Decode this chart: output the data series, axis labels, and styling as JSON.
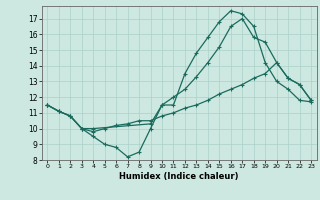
{
  "xlabel": "Humidex (Indice chaleur)",
  "bg_color": "#cde8e0",
  "line_color": "#1a6b5e",
  "grid_color": "#aad0c8",
  "xlim": [
    -0.5,
    23.5
  ],
  "ylim": [
    8,
    17.8
  ],
  "xticks": [
    0,
    1,
    2,
    3,
    4,
    5,
    6,
    7,
    8,
    9,
    10,
    11,
    12,
    13,
    14,
    15,
    16,
    17,
    18,
    19,
    20,
    21,
    22,
    23
  ],
  "yticks": [
    8,
    9,
    10,
    11,
    12,
    13,
    14,
    15,
    16,
    17
  ],
  "line1": {
    "x": [
      0,
      1,
      2,
      3,
      4,
      5,
      6,
      7,
      8,
      9,
      10,
      11,
      12,
      13,
      14,
      15,
      16,
      17,
      18,
      19,
      20,
      21,
      22,
      23
    ],
    "y": [
      11.5,
      11.1,
      10.8,
      10.0,
      9.5,
      9.0,
      8.8,
      8.2,
      8.5,
      10.0,
      11.5,
      11.5,
      13.5,
      14.8,
      15.8,
      16.8,
      17.5,
      17.3,
      16.5,
      14.2,
      13.0,
      12.5,
      11.8,
      11.7
    ]
  },
  "line2": {
    "x": [
      0,
      1,
      2,
      3,
      4,
      9,
      10,
      11,
      12,
      13,
      14,
      15,
      16,
      17,
      18,
      19,
      20,
      21,
      22,
      23
    ],
    "y": [
      11.5,
      11.1,
      10.8,
      10.0,
      10.0,
      10.3,
      11.5,
      12.0,
      12.5,
      13.3,
      14.2,
      15.2,
      16.5,
      17.0,
      15.8,
      15.5,
      14.2,
      13.2,
      12.8,
      11.8
    ]
  },
  "line3": {
    "x": [
      0,
      1,
      2,
      3,
      4,
      5,
      6,
      7,
      8,
      9,
      10,
      11,
      12,
      13,
      14,
      15,
      16,
      17,
      18,
      19,
      20,
      21,
      22,
      23
    ],
    "y": [
      11.5,
      11.1,
      10.8,
      10.0,
      9.8,
      10.0,
      10.2,
      10.3,
      10.5,
      10.5,
      10.8,
      11.0,
      11.3,
      11.5,
      11.8,
      12.2,
      12.5,
      12.8,
      13.2,
      13.5,
      14.2,
      13.2,
      12.8,
      11.8
    ]
  }
}
